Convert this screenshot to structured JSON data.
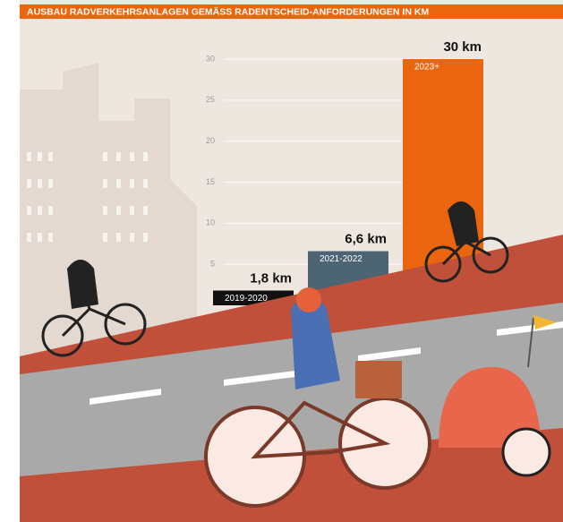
{
  "chart_data": {
    "type": "bar",
    "title": "AUSBAU RADVERKEHRSANLAGEN GEMÄSS RADENTSCHEID-ANFORDERUNGEN IN KM",
    "categories": [
      "2019-2020",
      "2021-2022",
      "2023+"
    ],
    "values": [
      1.8,
      6.6,
      30
    ],
    "value_labels": [
      "1,8 km",
      "6,6 km",
      "30 km"
    ],
    "colors": [
      "#111111",
      "#4d6472",
      "#ea650d"
    ],
    "ylim": [
      0,
      30
    ],
    "yticks": [
      5,
      10,
      15,
      20,
      25,
      30
    ],
    "grid": true
  }
}
